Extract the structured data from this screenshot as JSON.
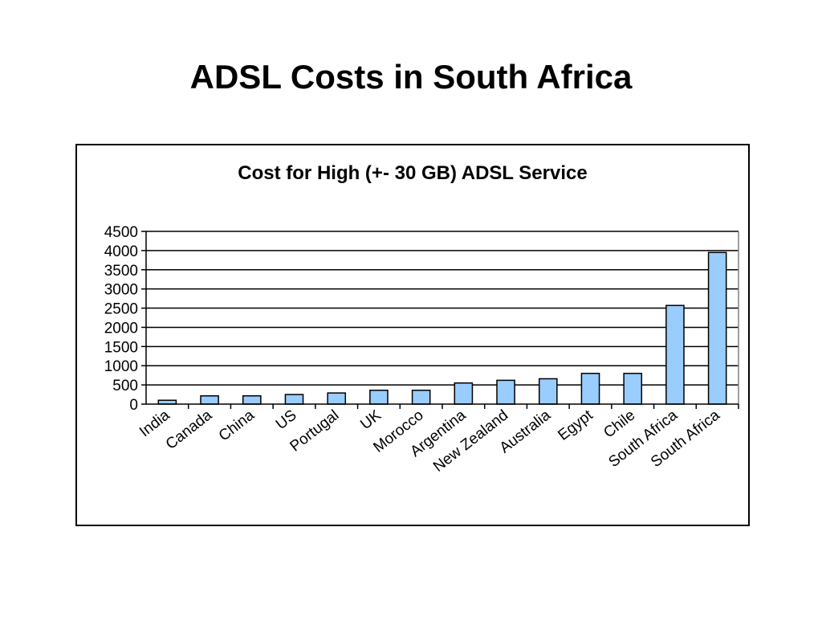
{
  "slide": {
    "title": "ADSL Costs in South Africa"
  },
  "chart_data": {
    "type": "bar",
    "title": "Cost for High (+- 30 GB) ADSL Service",
    "xlabel": "",
    "ylabel": "",
    "categories": [
      "India",
      "Canada",
      "China",
      "US",
      "Portugal",
      "UK",
      "Morocco",
      "Argentina",
      "New Zealand",
      "Australia",
      "Egypt",
      "Chile",
      "South Africa",
      "South Africa"
    ],
    "values": [
      100,
      215,
      215,
      250,
      290,
      360,
      360,
      550,
      620,
      660,
      800,
      800,
      2570,
      3950
    ],
    "ylim": [
      0,
      4500
    ],
    "yticks": [
      0,
      500,
      1000,
      1500,
      2000,
      2500,
      3000,
      3500,
      4000,
      4500
    ],
    "grid": true,
    "legend": "none",
    "colors": {
      "bar_fill": "#99ccff",
      "bar_stroke": "#000000",
      "grid": "#000000",
      "plot_border": "#808080"
    }
  }
}
